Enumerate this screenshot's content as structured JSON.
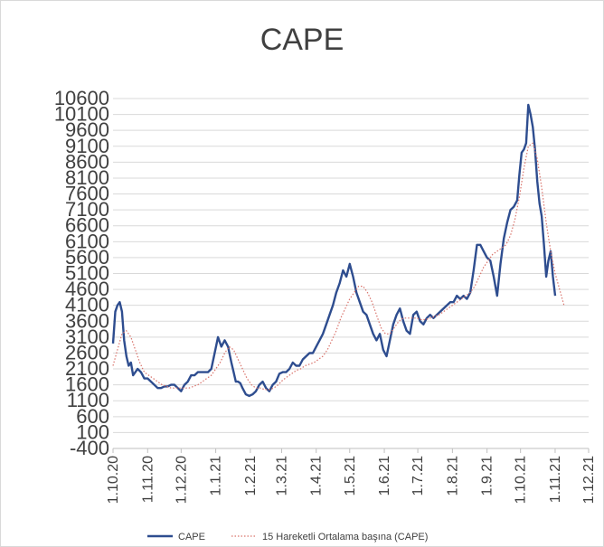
{
  "chart_data": {
    "type": "line",
    "title": "CAPE",
    "xlabel": "",
    "ylabel": "",
    "ylim": [
      -400,
      10600
    ],
    "ytick_step": 500,
    "y_ticks": [
      "10600",
      "10100",
      "9600",
      "9100",
      "8600",
      "8100",
      "7600",
      "7100",
      "6600",
      "6100",
      "5600",
      "5100",
      "4600",
      "4100",
      "3600",
      "3100",
      "2600",
      "2100",
      "1600",
      "1100",
      "600",
      "100",
      "-400"
    ],
    "x_ticks": [
      {
        "label": "1.10.20",
        "day": 0
      },
      {
        "label": "1.11.20",
        "day": 31
      },
      {
        "label": "1.12.20",
        "day": 61
      },
      {
        "label": "1.1.21",
        "day": 92
      },
      {
        "label": "1.2.21",
        "day": 123
      },
      {
        "label": "1.3.21",
        "day": 151
      },
      {
        "label": "1.4.21",
        "day": 182
      },
      {
        "label": "1.5.21",
        "day": 212
      },
      {
        "label": "1.6.21",
        "day": 243
      },
      {
        "label": "1.7.21",
        "day": 273
      },
      {
        "label": "1.8.21",
        "day": 304
      },
      {
        "label": "1.9.21",
        "day": 335
      },
      {
        "label": "1.10.21",
        "day": 365
      },
      {
        "label": "1.11.21",
        "day": 396
      },
      {
        "label": "1.12.21",
        "day": 426
      }
    ],
    "grid": true,
    "legend_position": "bottom",
    "series": [
      {
        "name": "CAPE",
        "color": "#2e4d8f",
        "style": "solid",
        "x": [
          0,
          2,
          4,
          6,
          8,
          10,
          12,
          14,
          16,
          18,
          20,
          22,
          25,
          28,
          31,
          34,
          37,
          40,
          43,
          46,
          49,
          52,
          55,
          58,
          61,
          64,
          67,
          70,
          73,
          76,
          79,
          82,
          85,
          88,
          91,
          94,
          97,
          100,
          103,
          106,
          108,
          110,
          112,
          114,
          116,
          119,
          122,
          125,
          128,
          131,
          134,
          137,
          140,
          143,
          146,
          149,
          152,
          155,
          158,
          161,
          164,
          167,
          170,
          173,
          176,
          179,
          182,
          185,
          188,
          191,
          194,
          197,
          200,
          203,
          206,
          209,
          212,
          215,
          218,
          221,
          224,
          227,
          230,
          233,
          236,
          239,
          242,
          245,
          248,
          251,
          254,
          257,
          260,
          263,
          266,
          269,
          272,
          275,
          278,
          281,
          284,
          287,
          290,
          293,
          296,
          299,
          302,
          305,
          308,
          311,
          314,
          317,
          320,
          323,
          326,
          329,
          332,
          335,
          338,
          341,
          344,
          347,
          350,
          353,
          356,
          359,
          362,
          364,
          366,
          368,
          370,
          372,
          374,
          376,
          378,
          380,
          382,
          384,
          386,
          388,
          390,
          392,
          394,
          396
        ],
        "y": [
          2900,
          3900,
          4100,
          4200,
          3900,
          3000,
          2500,
          2200,
          2300,
          1900,
          2000,
          2100,
          2000,
          1800,
          1800,
          1700,
          1600,
          1500,
          1500,
          1550,
          1550,
          1600,
          1600,
          1500,
          1400,
          1600,
          1700,
          1900,
          1900,
          2000,
          2000,
          2000,
          2000,
          2100,
          2600,
          3100,
          2800,
          3000,
          2800,
          2300,
          2000,
          1700,
          1700,
          1650,
          1500,
          1300,
          1250,
          1300,
          1400,
          1600,
          1700,
          1500,
          1400,
          1600,
          1700,
          1950,
          2000,
          2000,
          2100,
          2300,
          2200,
          2200,
          2400,
          2500,
          2600,
          2600,
          2800,
          3000,
          3200,
          3500,
          3800,
          4100,
          4500,
          4800,
          5200,
          5000,
          5400,
          5000,
          4500,
          4200,
          3900,
          3800,
          3500,
          3200,
          3000,
          3200,
          2700,
          2500,
          3000,
          3500,
          3800,
          4000,
          3600,
          3300,
          3200,
          3800,
          3900,
          3600,
          3500,
          3700,
          3800,
          3700,
          3800,
          3900,
          4000,
          4100,
          4200,
          4200,
          4400,
          4300,
          4400,
          4300,
          4500,
          5200,
          6000,
          6000,
          5800,
          5600,
          5500,
          5000,
          4400,
          5400,
          6200,
          6700,
          7100,
          7200,
          7400,
          8200,
          8900,
          9000,
          9200,
          10400,
          10100,
          9700,
          9000,
          8000,
          7300,
          6900,
          6000,
          5000,
          5500,
          5800,
          5000,
          4400
        ]
      },
      {
        "name": "15 Hareketli Ortalama başına (CAPE)",
        "color": "#d9736b",
        "style": "dotted",
        "x": [
          0,
          4,
          8,
          12,
          16,
          20,
          24,
          28,
          32,
          36,
          40,
          44,
          48,
          52,
          56,
          60,
          64,
          68,
          72,
          76,
          80,
          84,
          88,
          92,
          96,
          100,
          104,
          108,
          112,
          116,
          120,
          124,
          128,
          132,
          136,
          140,
          144,
          148,
          152,
          156,
          160,
          164,
          168,
          172,
          176,
          180,
          184,
          188,
          192,
          196,
          200,
          204,
          208,
          212,
          216,
          220,
          224,
          228,
          232,
          236,
          240,
          244,
          248,
          252,
          256,
          260,
          264,
          268,
          272,
          276,
          280,
          284,
          288,
          292,
          296,
          300,
          304,
          308,
          312,
          316,
          320,
          324,
          328,
          332,
          336,
          340,
          344,
          348,
          352,
          356,
          360,
          364,
          368,
          372,
          376,
          380,
          384,
          388,
          392,
          396,
          400,
          404
        ],
        "y": [
          2200,
          2700,
          3200,
          3300,
          3100,
          2700,
          2300,
          2000,
          1900,
          1800,
          1700,
          1600,
          1550,
          1500,
          1500,
          1500,
          1500,
          1500,
          1550,
          1600,
          1700,
          1800,
          1900,
          2100,
          2300,
          2600,
          2800,
          2700,
          2400,
          2100,
          1800,
          1600,
          1500,
          1500,
          1450,
          1450,
          1500,
          1600,
          1750,
          1850,
          1950,
          2050,
          2100,
          2200,
          2250,
          2300,
          2400,
          2500,
          2700,
          3000,
          3300,
          3700,
          4000,
          4300,
          4500,
          4700,
          4700,
          4500,
          4200,
          3800,
          3400,
          3200,
          3200,
          3400,
          3600,
          3700,
          3700,
          3700,
          3700,
          3650,
          3650,
          3700,
          3750,
          3800,
          3900,
          4000,
          4100,
          4200,
          4300,
          4400,
          4500,
          4700,
          5000,
          5300,
          5500,
          5700,
          5800,
          5900,
          6000,
          6300,
          6800,
          7500,
          8400,
          9100,
          9200,
          8700,
          7800,
          6700,
          5800,
          5100,
          4600,
          4100
        ]
      }
    ]
  }
}
